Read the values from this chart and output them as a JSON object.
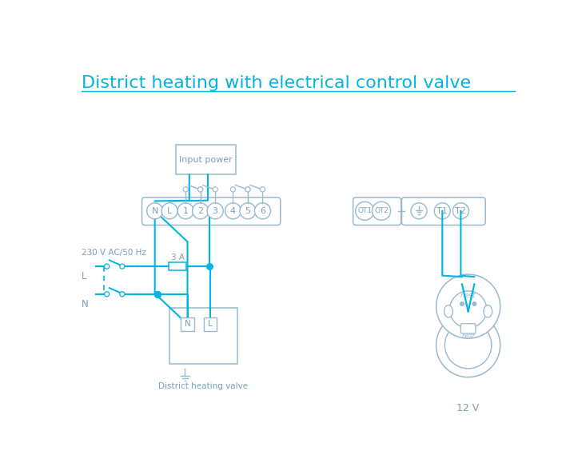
{
  "title": "District heating with electrical control valve",
  "title_color": "#00b5e2",
  "bg_color": "#ffffff",
  "wire_color": "#00b5e2",
  "outline_color": "#9ab8cc",
  "text_color": "#7a9fb8",
  "label_12v": "12 V",
  "label_valve": "District heating valve",
  "label_input_power": "Input power",
  "label_L": "L",
  "label_N": "N",
  "label_voltage": "230 V AC/50 Hz",
  "label_fuse": "3 A",
  "fig_w": 7.28,
  "fig_h": 5.94,
  "dpi": 100
}
